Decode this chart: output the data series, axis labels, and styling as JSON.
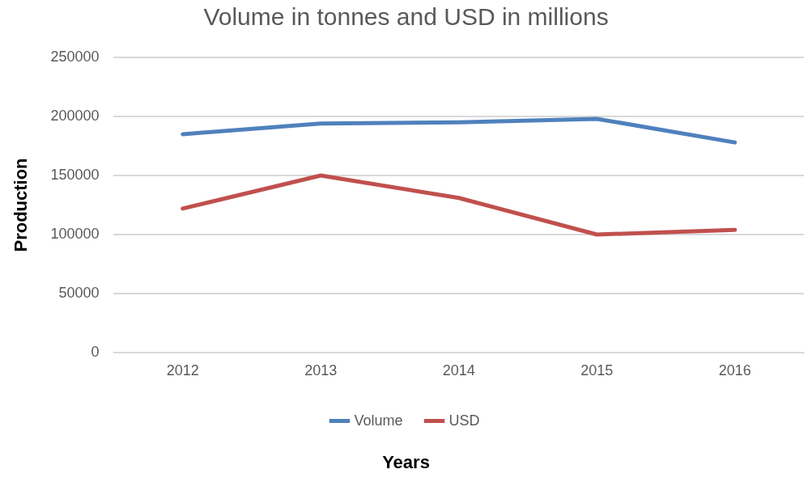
{
  "chart_data": {
    "type": "line",
    "title": "Volume in tonnes and USD in millions",
    "xlabel": "Years",
    "ylabel": "Production",
    "categories": [
      "2012",
      "2013",
      "2014",
      "2015",
      "2016"
    ],
    "series": [
      {
        "name": "Volume",
        "color": "#4f81bd",
        "values": [
          185000,
          194000,
          195000,
          198000,
          178000
        ]
      },
      {
        "name": "USD",
        "color": "#c0504d",
        "values": [
          122000,
          150000,
          131000,
          100000,
          104000
        ]
      }
    ],
    "ylim": [
      0,
      250000
    ],
    "yticks": [
      0,
      50000,
      100000,
      150000,
      200000,
      250000
    ],
    "grid": "y",
    "legend": "bottom",
    "marker": "none",
    "line_style": "solid"
  }
}
